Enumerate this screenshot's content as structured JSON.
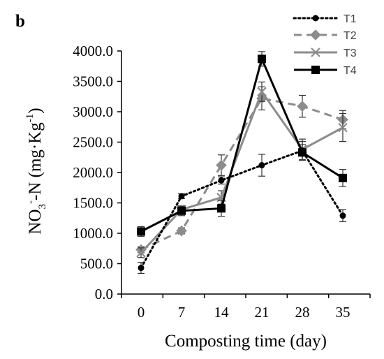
{
  "panel_label": "b",
  "chart_data": {
    "type": "line",
    "title": "",
    "xlabel": "Composting time (day)",
    "ylabel": {
      "prefix": "NO",
      "sub": "3",
      "sup_charge": "-",
      "middle": "-N (mg·Kg",
      "sup_exp": "-1",
      "suffix": ")"
    },
    "x": [
      0,
      7,
      14,
      21,
      28,
      35
    ],
    "x_tick_labels": [
      "0",
      "7",
      "14",
      "21",
      "28",
      "35"
    ],
    "ylim": [
      0,
      4000
    ],
    "y_ticks": [
      0,
      500,
      1000,
      1500,
      2000,
      2500,
      3000,
      3500,
      4000
    ],
    "y_tick_labels": [
      "0.0",
      "500.0",
      "1000.0",
      "1500.0",
      "2000.0",
      "2500.0",
      "3000.0",
      "3500.0",
      "4000.0"
    ],
    "grid": false,
    "legend_position": "top-right",
    "series": [
      {
        "name": "T1",
        "values": [
          430,
          1610,
          1870,
          2120,
          2360,
          1290
        ],
        "errors": [
          90,
          40,
          60,
          180,
          150,
          100
        ],
        "color": "#000000",
        "line_style": "dotted",
        "marker": "circle"
      },
      {
        "name": "T2",
        "values": [
          730,
          1040,
          2120,
          3220,
          3090,
          2870
        ],
        "errors": [
          50,
          50,
          170,
          190,
          180,
          150
        ],
        "color": "#8c8c8c",
        "line_style": "dashed",
        "marker": "diamond"
      },
      {
        "name": "T3",
        "values": [
          680,
          1390,
          1590,
          3330,
          2380,
          2740
        ],
        "errors": [
          80,
          50,
          110,
          160,
          170,
          230
        ],
        "color": "#8c8c8c",
        "line_style": "solid",
        "marker": "x"
      },
      {
        "name": "T4",
        "values": [
          1030,
          1370,
          1410,
          3870,
          2330,
          1910
        ],
        "errors": [
          80,
          80,
          130,
          120,
          130,
          140
        ],
        "color": "#000000",
        "line_style": "solid",
        "marker": "square"
      }
    ]
  }
}
